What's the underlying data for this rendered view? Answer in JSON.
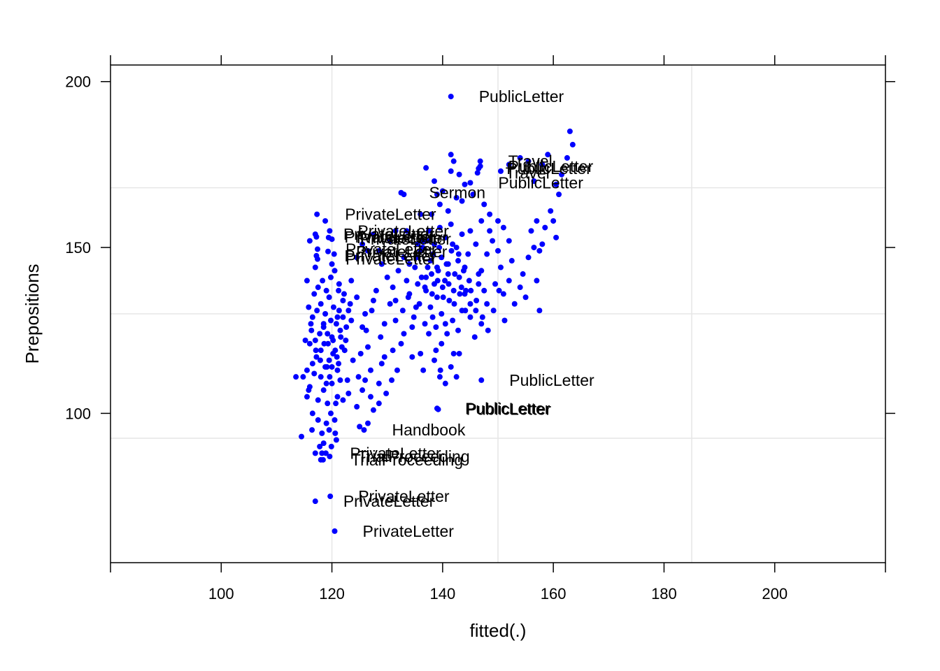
{
  "chart_data": {
    "type": "scatter",
    "title": "",
    "xlabel": "fitted(.)",
    "ylabel": "Prepositions",
    "xlim": [
      80,
      220
    ],
    "ylim": [
      55,
      205
    ],
    "x_ticks": [
      100,
      120,
      140,
      160,
      180,
      200
    ],
    "y_ticks": [
      100,
      150,
      200
    ],
    "x_gridlines": [
      120,
      150,
      185
    ],
    "y_gridlines": [
      92.5,
      130,
      168
    ],
    "grid": true,
    "point_color": "#0000FF",
    "labeled_points": [
      {
        "x": 141.5,
        "y": 195.5,
        "label": "PublicLetter"
      },
      {
        "x": 146.8,
        "y": 176.0,
        "label": "Travel"
      },
      {
        "x": 146.8,
        "y": 174.5,
        "label": "PublicLetter"
      },
      {
        "x": 146.5,
        "y": 173.8,
        "label": "PublicLetter"
      },
      {
        "x": 146.3,
        "y": 172.5,
        "label": "Travel"
      },
      {
        "x": 145.0,
        "y": 169.5,
        "label": "PublicLetter"
      },
      {
        "x": 132.5,
        "y": 166.5,
        "label": "Sermon"
      },
      {
        "x": 117.3,
        "y": 160.0,
        "label": "PrivateLetter"
      },
      {
        "x": 119.6,
        "y": 155.0,
        "label": "PrivateLetter"
      },
      {
        "x": 117.0,
        "y": 154.0,
        "label": "PrivateLetter"
      },
      {
        "x": 117.2,
        "y": 153.2,
        "label": "PrivateLetter"
      },
      {
        "x": 119.4,
        "y": 153.0,
        "label": "PrivateLetter"
      },
      {
        "x": 120.0,
        "y": 152.5,
        "label": "PrivateLetter"
      },
      {
        "x": 117.4,
        "y": 149.5,
        "label": "PrivateLetter"
      },
      {
        "x": 119.3,
        "y": 148.8,
        "label": "PrivateLetter"
      },
      {
        "x": 117.2,
        "y": 147.5,
        "label": "PrivateLetter"
      },
      {
        "x": 117.4,
        "y": 146.5,
        "label": "PrivateLetter"
      },
      {
        "x": 147.0,
        "y": 110.0,
        "label": "PublicLetter"
      },
      {
        "x": 139.0,
        "y": 101.5,
        "label": "PublicLetter"
      },
      {
        "x": 139.2,
        "y": 101.2,
        "label": "PublicLetter"
      },
      {
        "x": 125.8,
        "y": 95.0,
        "label": "Handbook"
      },
      {
        "x": 118.2,
        "y": 88.0,
        "label": "PrivateLetter"
      },
      {
        "x": 119.6,
        "y": 87.0,
        "label": "TrialProceeding"
      },
      {
        "x": 118.4,
        "y": 86.0,
        "label": "TrialProceeding"
      },
      {
        "x": 119.7,
        "y": 75.0,
        "label": "PrivateLetter"
      },
      {
        "x": 117.0,
        "y": 73.5,
        "label": "PrivateLetter"
      },
      {
        "x": 120.5,
        "y": 64.5,
        "label": "PrivateLetter"
      }
    ],
    "points": [
      [
        114.5,
        93
      ],
      [
        113.5,
        111
      ],
      [
        115.5,
        105
      ],
      [
        116.5,
        100
      ],
      [
        117,
        88
      ],
      [
        118,
        86
      ],
      [
        118.5,
        91
      ],
      [
        119.5,
        95
      ],
      [
        120.5,
        98
      ],
      [
        120.8,
        92
      ],
      [
        116,
        108
      ],
      [
        117.5,
        104
      ],
      [
        118.5,
        107
      ],
      [
        119.2,
        103
      ],
      [
        120,
        109
      ],
      [
        121,
        105
      ],
      [
        122,
        104
      ],
      [
        123,
        106
      ],
      [
        124.5,
        102
      ],
      [
        125.5,
        107
      ],
      [
        127,
        105
      ],
      [
        128.5,
        109
      ],
      [
        126,
        110
      ],
      [
        115.5,
        113
      ],
      [
        116.5,
        115
      ],
      [
        117.2,
        117
      ],
      [
        118,
        119
      ],
      [
        118.8,
        114
      ],
      [
        119.5,
        116
      ],
      [
        120.2,
        118
      ],
      [
        121,
        113
      ],
      [
        121.8,
        120
      ],
      [
        116,
        121
      ],
      [
        117,
        122
      ],
      [
        117.8,
        124
      ],
      [
        118.5,
        126
      ],
      [
        119.3,
        121
      ],
      [
        120,
        123
      ],
      [
        120.8,
        127
      ],
      [
        121.5,
        125
      ],
      [
        122.5,
        122
      ],
      [
        123.5,
        128
      ],
      [
        116.5,
        129
      ],
      [
        117.3,
        131
      ],
      [
        118,
        133
      ],
      [
        118.8,
        130
      ],
      [
        119.5,
        135
      ],
      [
        120.3,
        132
      ],
      [
        121,
        129
      ],
      [
        122,
        134
      ],
      [
        123,
        131
      ],
      [
        116.8,
        136
      ],
      [
        117.5,
        138
      ],
      [
        118.3,
        140
      ],
      [
        119,
        137
      ],
      [
        119.8,
        141
      ],
      [
        120.5,
        143
      ],
      [
        121.3,
        139
      ],
      [
        122.2,
        136
      ],
      [
        115.5,
        140
      ],
      [
        117,
        144
      ],
      [
        120,
        145
      ],
      [
        124.5,
        135
      ],
      [
        125.5,
        126
      ],
      [
        126.5,
        120
      ],
      [
        127.2,
        131
      ],
      [
        128,
        137
      ],
      [
        128.8,
        123
      ],
      [
        129.5,
        117
      ],
      [
        130.5,
        133
      ],
      [
        131.5,
        128
      ],
      [
        132.5,
        121
      ],
      [
        133.5,
        140
      ],
      [
        134.5,
        126
      ],
      [
        135.2,
        132
      ],
      [
        136,
        118
      ],
      [
        136.8,
        138
      ],
      [
        137.5,
        124
      ],
      [
        138.2,
        129
      ],
      [
        139,
        135
      ],
      [
        139.8,
        121
      ],
      [
        140.5,
        127
      ],
      [
        141.2,
        134
      ],
      [
        142,
        118
      ],
      [
        142.8,
        125
      ],
      [
        143.5,
        131
      ],
      [
        144.2,
        137
      ],
      [
        145,
        129
      ],
      [
        145.8,
        123
      ],
      [
        146.5,
        139
      ],
      [
        129,
        145
      ],
      [
        130,
        141
      ],
      [
        131,
        138
      ],
      [
        132,
        143
      ],
      [
        133,
        147
      ],
      [
        134,
        136
      ],
      [
        135,
        144
      ],
      [
        136,
        149
      ],
      [
        137,
        141
      ],
      [
        137.8,
        146
      ],
      [
        138.5,
        139
      ],
      [
        139.2,
        143
      ],
      [
        139.8,
        147
      ],
      [
        140.4,
        140
      ],
      [
        141,
        145
      ],
      [
        141.6,
        149
      ],
      [
        142.2,
        142
      ],
      [
        142.8,
        146
      ],
      [
        143.4,
        138
      ],
      [
        144,
        144
      ],
      [
        144.6,
        148
      ],
      [
        136.5,
        152
      ],
      [
        137.5,
        155
      ],
      [
        138.5,
        151
      ],
      [
        139.5,
        156
      ],
      [
        140.5,
        153
      ],
      [
        141.5,
        157
      ],
      [
        142.5,
        150
      ],
      [
        143.5,
        154
      ],
      [
        138,
        160
      ],
      [
        139.5,
        163
      ],
      [
        141,
        161
      ],
      [
        142.5,
        165
      ],
      [
        140,
        167
      ],
      [
        138.5,
        170
      ],
      [
        137,
        174
      ],
      [
        141.5,
        178
      ],
      [
        142,
        176
      ],
      [
        143,
        172
      ],
      [
        144,
        169
      ],
      [
        145.5,
        166
      ],
      [
        147.5,
        163
      ],
      [
        148.5,
        160
      ],
      [
        150,
        158
      ],
      [
        151,
        156
      ],
      [
        149,
        152
      ],
      [
        148,
        148
      ],
      [
        147,
        143
      ],
      [
        149.5,
        139
      ],
      [
        151,
        136
      ],
      [
        152,
        140
      ],
      [
        153,
        133
      ],
      [
        154,
        138
      ],
      [
        155,
        135
      ],
      [
        152.5,
        146
      ],
      [
        154.5,
        142
      ],
      [
        155.5,
        147
      ],
      [
        156.5,
        150
      ],
      [
        157.5,
        149
      ],
      [
        158,
        151
      ],
      [
        156,
        155
      ],
      [
        157,
        158
      ],
      [
        158.5,
        156
      ],
      [
        159.5,
        161
      ],
      [
        160,
        158
      ],
      [
        160.5,
        153
      ],
      [
        157.5,
        131
      ],
      [
        157,
        140
      ],
      [
        156.5,
        170
      ],
      [
        158,
        175
      ],
      [
        159,
        178
      ],
      [
        160.5,
        169
      ],
      [
        161.5,
        172
      ],
      [
        162.5,
        177
      ],
      [
        163,
        185
      ],
      [
        163.5,
        181
      ],
      [
        161,
        166
      ],
      [
        150.5,
        173
      ],
      [
        152,
        175
      ],
      [
        154,
        177
      ],
      [
        155.5,
        176
      ],
      [
        127,
        113
      ],
      [
        129,
        115
      ],
      [
        131,
        119
      ],
      [
        133,
        124
      ],
      [
        134.5,
        117
      ],
      [
        136.5,
        113
      ],
      [
        138.5,
        116
      ],
      [
        139.5,
        111
      ],
      [
        140.5,
        109
      ],
      [
        141.5,
        114
      ],
      [
        142.5,
        111
      ],
      [
        143,
        118
      ],
      [
        126,
        130
      ],
      [
        127.5,
        134
      ],
      [
        129.5,
        127
      ],
      [
        131.5,
        134
      ],
      [
        123.5,
        140
      ],
      [
        124.5,
        147
      ],
      [
        125.5,
        151
      ],
      [
        126.5,
        149
      ],
      [
        127.5,
        154
      ],
      [
        128.5,
        149
      ],
      [
        130.5,
        152
      ],
      [
        131.5,
        155
      ],
      [
        133.5,
        155
      ],
      [
        135.5,
        151
      ],
      [
        121.2,
        115
      ],
      [
        121.5,
        110
      ],
      [
        120.7,
        103
      ],
      [
        119.8,
        100
      ],
      [
        119,
        97
      ],
      [
        118.2,
        94
      ],
      [
        117.5,
        98
      ],
      [
        122.8,
        110
      ],
      [
        123.8,
        116
      ],
      [
        124.8,
        111
      ],
      [
        125.2,
        118
      ],
      [
        126.2,
        125
      ],
      [
        122,
        129
      ],
      [
        121.2,
        137
      ],
      [
        120.4,
        148
      ],
      [
        118.8,
        158
      ],
      [
        116,
        152
      ],
      [
        115.8,
        132
      ],
      [
        116.2,
        127
      ],
      [
        115.2,
        122
      ],
      [
        116.8,
        112
      ],
      [
        118,
        111
      ],
      [
        119,
        109
      ],
      [
        120,
        114
      ],
      [
        118.5,
        127
      ],
      [
        119.2,
        124
      ],
      [
        119.8,
        128
      ],
      [
        120.6,
        119
      ],
      [
        121.3,
        131
      ],
      [
        122.6,
        126
      ],
      [
        123.3,
        133
      ],
      [
        132.8,
        131
      ],
      [
        133.8,
        135
      ],
      [
        134.8,
        129
      ],
      [
        135.8,
        133
      ],
      [
        136.8,
        127
      ],
      [
        137.8,
        132
      ],
      [
        138.8,
        126
      ],
      [
        139.8,
        130
      ],
      [
        140.8,
        124
      ],
      [
        141.8,
        128
      ],
      [
        134,
        145
      ],
      [
        135.5,
        139
      ],
      [
        137,
        137
      ],
      [
        138,
        142
      ],
      [
        139,
        144
      ],
      [
        140,
        138
      ],
      [
        141,
        142
      ],
      [
        142,
        137
      ],
      [
        143,
        141
      ],
      [
        144,
        136
      ],
      [
        145,
        133
      ],
      [
        146,
        131
      ],
      [
        147,
        127
      ],
      [
        148,
        133
      ],
      [
        146.5,
        142
      ],
      [
        147.5,
        137
      ],
      [
        133,
        166
      ],
      [
        136,
        160
      ],
      [
        139,
        166
      ],
      [
        141.5,
        173
      ],
      [
        143.5,
        164
      ],
      [
        145,
        155
      ],
      [
        146,
        151
      ],
      [
        147,
        158
      ],
      [
        148.5,
        155
      ],
      [
        150,
        149
      ],
      [
        150.5,
        144
      ],
      [
        152,
        152
      ],
      [
        125,
        96
      ],
      [
        126.5,
        97
      ],
      [
        127.5,
        101
      ],
      [
        128.5,
        103
      ],
      [
        129.8,
        106
      ],
      [
        130.8,
        110
      ],
      [
        131.8,
        113
      ],
      [
        138.8,
        119
      ],
      [
        139.6,
        113
      ],
      [
        120.2,
        122
      ],
      [
        120.9,
        117
      ],
      [
        121.6,
        123
      ],
      [
        122.3,
        119
      ],
      [
        116.3,
        125
      ],
      [
        117.1,
        119
      ],
      [
        117.9,
        116
      ],
      [
        118.6,
        121
      ],
      [
        119.1,
        114
      ],
      [
        119.6,
        111
      ],
      [
        114.8,
        111
      ],
      [
        115.8,
        107
      ],
      [
        116.4,
        95
      ],
      [
        117.8,
        90
      ],
      [
        118.9,
        88
      ],
      [
        119.9,
        90
      ],
      [
        120.6,
        94
      ],
      [
        135.3,
        147
      ],
      [
        136.4,
        150
      ],
      [
        137.2,
        152
      ],
      [
        138.3,
        148
      ],
      [
        139.4,
        150
      ],
      [
        140.7,
        145
      ],
      [
        141.8,
        151
      ],
      [
        142.9,
        148
      ],
      [
        143.8,
        143
      ],
      [
        144.8,
        140
      ],
      [
        136.2,
        141
      ],
      [
        137.3,
        144
      ],
      [
        138.1,
        136
      ],
      [
        139.1,
        140
      ],
      [
        140.1,
        135
      ],
      [
        141.1,
        139
      ],
      [
        142.1,
        133
      ],
      [
        143.1,
        136
      ],
      [
        144.1,
        131
      ],
      [
        145.1,
        137
      ],
      [
        146.1,
        134
      ],
      [
        147.2,
        129
      ],
      [
        148.2,
        125
      ],
      [
        149.2,
        131
      ],
      [
        150.2,
        137
      ],
      [
        151.2,
        128
      ]
    ]
  }
}
